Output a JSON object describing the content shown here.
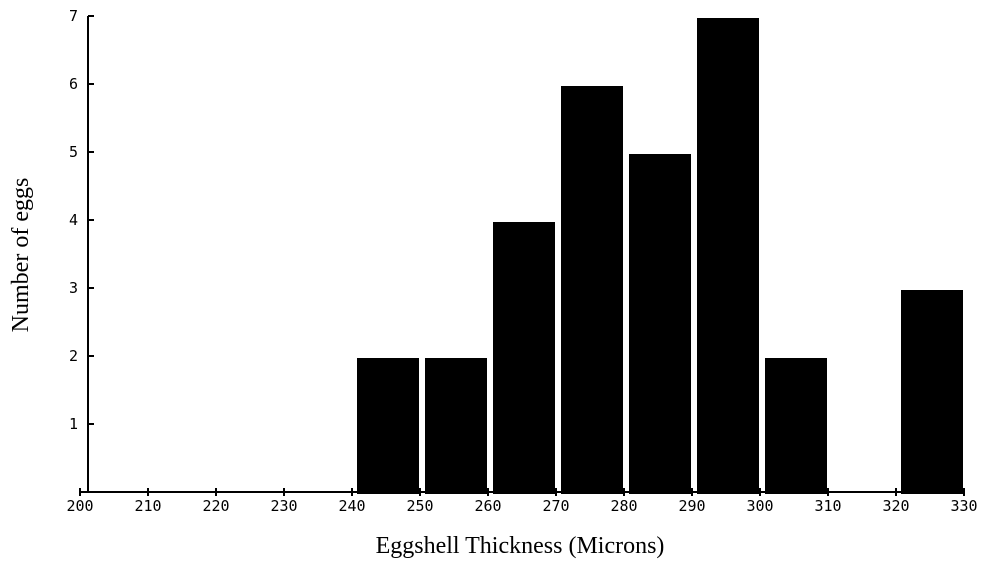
{
  "chart_data": {
    "type": "bar",
    "title": "",
    "xlabel": "Eggshell Thickness (Microns)",
    "ylabel": "Number of eggs",
    "xlim": [
      200,
      330
    ],
    "ylim": [
      0,
      7
    ],
    "x_ticks": [
      "200",
      "210",
      "220",
      "230",
      "240",
      "250",
      "260",
      "270",
      "280",
      "290",
      "300",
      "310",
      "320",
      "330"
    ],
    "y_ticks": [
      "1",
      "2",
      "3",
      "4",
      "5",
      "6",
      "7"
    ],
    "bins": [
      {
        "from": 240,
        "to": 250,
        "value": 2
      },
      {
        "from": 250,
        "to": 260,
        "value": 2
      },
      {
        "from": 260,
        "to": 270,
        "value": 4
      },
      {
        "from": 270,
        "to": 280,
        "value": 6
      },
      {
        "from": 280,
        "to": 290,
        "value": 5
      },
      {
        "from": 290,
        "to": 300,
        "value": 7
      },
      {
        "from": 300,
        "to": 310,
        "value": 2
      },
      {
        "from": 320,
        "to": 330,
        "value": 3
      }
    ],
    "grid": false,
    "legend": "none"
  }
}
